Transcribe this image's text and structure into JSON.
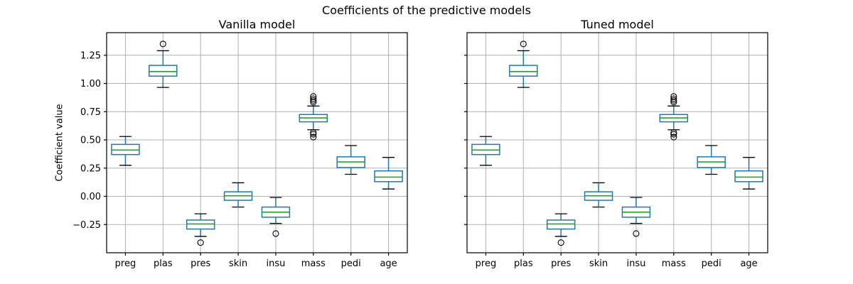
{
  "figure": {
    "suptitle": "Coefficients of the predictive models"
  },
  "style": {
    "box_color": "#1f77b4",
    "whisker_color": "#1f77b4",
    "median_color": "#2ca02c",
    "cap_color": "#000000",
    "flier_color": "#000000",
    "grid_color": "#b0b0b0",
    "spine_color": "#000000",
    "background": "#ffffff"
  },
  "chart_data": [
    {
      "type": "boxplot",
      "title": "Vanilla model",
      "ylabel": "Coefficient value",
      "categories": [
        "preg",
        "plas",
        "pres",
        "skin",
        "insu",
        "mass",
        "pedi",
        "age"
      ],
      "ylim": [
        -0.5,
        1.45
      ],
      "yticks": [
        1.25,
        1.0,
        0.75,
        0.5,
        0.25,
        0.0,
        -0.25
      ],
      "ytick_labels": [
        "1.25",
        "1.00",
        "0.75",
        "0.50",
        "0.25",
        "0.00",
        "−0.25"
      ],
      "grid": true,
      "boxes": [
        {
          "label": "preg",
          "whislo": 0.275,
          "q1": 0.37,
          "med": 0.41,
          "q3": 0.46,
          "whishi": 0.53,
          "fliers": []
        },
        {
          "label": "plas",
          "whislo": 0.965,
          "q1": 1.065,
          "med": 1.105,
          "q3": 1.16,
          "whishi": 1.29,
          "fliers": [
            1.35
          ]
        },
        {
          "label": "pres",
          "whislo": -0.355,
          "q1": -0.29,
          "med": -0.245,
          "q3": -0.21,
          "whishi": -0.155,
          "fliers": [
            -0.41
          ]
        },
        {
          "label": "skin",
          "whislo": -0.095,
          "q1": -0.035,
          "med": 0.005,
          "q3": 0.04,
          "whishi": 0.12,
          "fliers": []
        },
        {
          "label": "insu",
          "whislo": -0.24,
          "q1": -0.185,
          "med": -0.14,
          "q3": -0.095,
          "whishi": -0.01,
          "fliers": [
            -0.33
          ]
        },
        {
          "label": "mass",
          "whislo": 0.59,
          "q1": 0.66,
          "med": 0.695,
          "q3": 0.725,
          "whishi": 0.8,
          "fliers": [
            0.885,
            0.865,
            0.85,
            0.835,
            0.565,
            0.55,
            0.525
          ]
        },
        {
          "label": "pedi",
          "whislo": 0.195,
          "q1": 0.255,
          "med": 0.305,
          "q3": 0.35,
          "whishi": 0.45,
          "fliers": []
        },
        {
          "label": "age",
          "whislo": 0.065,
          "q1": 0.13,
          "med": 0.17,
          "q3": 0.225,
          "whishi": 0.345,
          "fliers": []
        }
      ]
    },
    {
      "type": "boxplot",
      "title": "Tuned model",
      "categories": [
        "preg",
        "plas",
        "pres",
        "skin",
        "insu",
        "mass",
        "pedi",
        "age"
      ],
      "ylim": [
        -0.5,
        1.45
      ],
      "yticks": [
        1.25,
        1.0,
        0.75,
        0.5,
        0.25,
        0.0,
        -0.25
      ],
      "ytick_labels": [
        "1.25",
        "1.00",
        "0.75",
        "0.50",
        "0.25",
        "0.00",
        "−0.25"
      ],
      "grid": true,
      "boxes": [
        {
          "label": "preg",
          "whislo": 0.275,
          "q1": 0.37,
          "med": 0.41,
          "q3": 0.46,
          "whishi": 0.53,
          "fliers": []
        },
        {
          "label": "plas",
          "whislo": 0.965,
          "q1": 1.065,
          "med": 1.105,
          "q3": 1.16,
          "whishi": 1.29,
          "fliers": [
            1.35
          ]
        },
        {
          "label": "pres",
          "whislo": -0.355,
          "q1": -0.29,
          "med": -0.245,
          "q3": -0.21,
          "whishi": -0.155,
          "fliers": [
            -0.41
          ]
        },
        {
          "label": "skin",
          "whislo": -0.095,
          "q1": -0.035,
          "med": 0.005,
          "q3": 0.04,
          "whishi": 0.12,
          "fliers": []
        },
        {
          "label": "insu",
          "whislo": -0.24,
          "q1": -0.185,
          "med": -0.14,
          "q3": -0.095,
          "whishi": -0.01,
          "fliers": [
            -0.33
          ]
        },
        {
          "label": "mass",
          "whislo": 0.59,
          "q1": 0.66,
          "med": 0.695,
          "q3": 0.725,
          "whishi": 0.8,
          "fliers": [
            0.885,
            0.865,
            0.85,
            0.835,
            0.565,
            0.55,
            0.525
          ]
        },
        {
          "label": "pedi",
          "whislo": 0.195,
          "q1": 0.255,
          "med": 0.305,
          "q3": 0.35,
          "whishi": 0.45,
          "fliers": []
        },
        {
          "label": "age",
          "whislo": 0.065,
          "q1": 0.13,
          "med": 0.17,
          "q3": 0.225,
          "whishi": 0.345,
          "fliers": []
        }
      ]
    }
  ]
}
